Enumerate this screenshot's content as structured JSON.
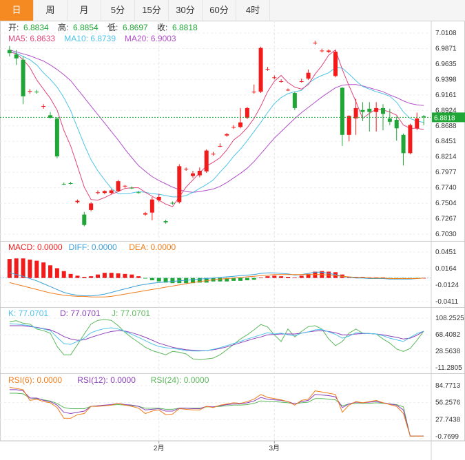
{
  "tabs": [
    "日",
    "周",
    "月",
    "5分",
    "15分",
    "30分",
    "60分",
    "4时"
  ],
  "active_tab": 0,
  "colors": {
    "up": "#f21b1b",
    "down": "#1fa636",
    "ma5": "#e0457b",
    "ma10": "#4fc3e8",
    "ma20": "#b04fc7",
    "price_line": "#1fa636",
    "macd_pos": "#f21b1b",
    "macd_neg": "#1fa636",
    "diff": "#3aa0d8",
    "dea": "#f07d1b",
    "k": "#4fc3e8",
    "d": "#8a3fb8",
    "j": "#5cb85c",
    "rsi6": "#f07d1b",
    "rsi12": "#8a3fb8",
    "rsi24": "#5cb85c"
  },
  "chart_data": [
    {
      "type": "candlestick",
      "ohlc_header": [
        {
          "label": "开:",
          "value": "6.8834"
        },
        {
          "label": "高:",
          "value": "6.8854"
        },
        {
          "label": "低:",
          "value": "6.8697"
        },
        {
          "label": "收:",
          "value": "6.8818"
        }
      ],
      "ma_labels": [
        {
          "label": "MA5: 6.8633",
          "key": "ma5"
        },
        {
          "label": "MA10: 6.8739",
          "key": "ma10"
        },
        {
          "label": "MA20: 6.9003",
          "key": "ma20"
        }
      ],
      "yticks": [
        "7.0108",
        "6.9871",
        "6.9635",
        "6.9398",
        "6.9161",
        "6.8924",
        "6.8688",
        "6.8451",
        "6.8214",
        "6.7977",
        "6.7740",
        "6.7504",
        "6.7267",
        "6.7030"
      ],
      "ylim": [
        6.703,
        7.0108
      ],
      "last_price": "6.8818",
      "x_labels": [
        {
          "label": "2月",
          "index": 22
        },
        {
          "label": "3月",
          "index": 39
        }
      ],
      "candles": [
        [
          6.985,
          6.991,
          6.975,
          6.98
        ],
        [
          6.978,
          6.985,
          6.962,
          6.972
        ],
        [
          6.97,
          6.975,
          6.902,
          6.914
        ],
        [
          6.922,
          6.925,
          6.918,
          6.922
        ],
        [
          6.921,
          6.924,
          6.918,
          6.92
        ],
        [
          6.898,
          6.902,
          6.895,
          6.899
        ],
        [
          6.885,
          6.89,
          6.88,
          6.881
        ],
        [
          6.88,
          6.882,
          6.819,
          6.822
        ],
        [
          6.78,
          6.782,
          6.778,
          6.779
        ],
        [
          6.781,
          6.783,
          6.779,
          6.78
        ],
        [
          6.752,
          6.756,
          6.75,
          6.754
        ],
        [
          6.733,
          6.737,
          6.715,
          6.717
        ],
        [
          6.74,
          6.752,
          6.738,
          6.75
        ],
        [
          6.766,
          6.77,
          6.764,
          6.767
        ],
        [
          6.766,
          6.77,
          6.764,
          6.769
        ],
        [
          6.766,
          6.772,
          6.764,
          6.77
        ],
        [
          6.769,
          6.786,
          6.768,
          6.784
        ],
        [
          6.776,
          6.778,
          6.774,
          6.777
        ],
        [
          6.774,
          6.776,
          6.772,
          6.773
        ],
        [
          6.767,
          6.769,
          6.765,
          6.766
        ],
        [
          6.733,
          6.737,
          6.731,
          6.735
        ],
        [
          6.736,
          6.76,
          6.724,
          6.756
        ],
        [
          6.755,
          6.765,
          6.752,
          6.76
        ],
        [
          6.723,
          6.725,
          6.719,
          6.721
        ],
        [
          6.751,
          6.753,
          6.748,
          6.75
        ],
        [
          6.752,
          6.81,
          6.75,
          6.807
        ],
        [
          6.802,
          6.805,
          6.8,
          6.803
        ],
        [
          6.792,
          6.8,
          6.789,
          6.796
        ],
        [
          6.793,
          6.805,
          6.79,
          6.8
        ],
        [
          6.799,
          6.833,
          6.797,
          6.831
        ],
        [
          6.825,
          6.829,
          6.823,
          6.826
        ],
        [
          6.838,
          6.842,
          6.836,
          6.838
        ],
        [
          6.854,
          6.858,
          6.852,
          6.856
        ],
        [
          6.866,
          6.87,
          6.864,
          6.867
        ],
        [
          6.867,
          6.896,
          6.865,
          6.874
        ],
        [
          6.881,
          6.898,
          6.879,
          6.896
        ],
        [
          6.92,
          6.932,
          6.918,
          6.921
        ],
        [
          6.921,
          6.99,
          6.919,
          6.988
        ],
        [
          6.955,
          6.959,
          6.953,
          6.956
        ],
        [
          6.942,
          6.946,
          6.94,
          6.943
        ],
        [
          6.937,
          6.94,
          6.935,
          6.937
        ],
        [
          6.924,
          6.926,
          6.922,
          6.924
        ],
        [
          6.919,
          6.921,
          6.893,
          6.896
        ],
        [
          6.937,
          6.941,
          6.935,
          6.937
        ],
        [
          6.941,
          6.955,
          6.939,
          6.95
        ],
        [
          6.995,
          6.999,
          6.993,
          6.996
        ],
        [
          6.983,
          6.987,
          6.981,
          6.984
        ],
        [
          6.982,
          6.986,
          6.98,
          6.984
        ],
        [
          6.945,
          6.985,
          6.943,
          6.982
        ],
        [
          6.927,
          6.928,
          6.838,
          6.855
        ],
        [
          6.855,
          6.885,
          6.845,
          6.884
        ],
        [
          6.88,
          6.91,
          6.855,
          6.896
        ],
        [
          6.893,
          6.905,
          6.876,
          6.89
        ],
        [
          6.895,
          6.905,
          6.86,
          6.89
        ],
        [
          6.89,
          6.905,
          6.86,
          6.896
        ],
        [
          6.896,
          6.902,
          6.862,
          6.887
        ],
        [
          6.88,
          6.895,
          6.87,
          6.875
        ],
        [
          6.878,
          6.883,
          6.846,
          6.865
        ],
        [
          6.855,
          6.857,
          6.808,
          6.827
        ],
        [
          6.827,
          6.872,
          6.825,
          6.87
        ],
        [
          6.865,
          6.889,
          6.862,
          6.88
        ],
        [
          6.8834,
          6.8854,
          6.8697,
          6.8818
        ]
      ],
      "ma5": [
        6.982,
        6.979,
        6.97,
        6.958,
        6.939,
        6.925,
        6.911,
        6.893,
        6.862,
        6.838,
        6.807,
        6.775,
        6.756,
        6.755,
        6.759,
        6.764,
        6.768,
        6.773,
        6.774,
        6.774,
        6.767,
        6.761,
        6.755,
        6.749,
        6.745,
        6.76,
        6.775,
        6.786,
        6.797,
        6.807,
        6.813,
        6.82,
        6.832,
        6.847,
        6.855,
        6.866,
        6.88,
        6.899,
        6.921,
        6.937,
        6.946,
        6.935,
        6.928,
        6.925,
        6.932,
        6.948,
        6.961,
        6.977,
        6.985,
        6.955,
        6.93,
        6.906,
        6.88,
        6.888,
        6.894,
        6.893,
        6.89,
        6.885,
        6.87,
        6.865,
        6.865,
        6.863
      ],
      "ma10": [
        6.982,
        6.98,
        6.975,
        6.97,
        6.962,
        6.95,
        6.94,
        6.928,
        6.912,
        6.892,
        6.866,
        6.84,
        6.817,
        6.8,
        6.786,
        6.773,
        6.765,
        6.765,
        6.766,
        6.768,
        6.767,
        6.765,
        6.764,
        6.762,
        6.76,
        6.76,
        6.762,
        6.767,
        6.773,
        6.779,
        6.786,
        6.798,
        6.809,
        6.822,
        6.833,
        6.846,
        6.86,
        6.874,
        6.889,
        6.903,
        6.912,
        6.918,
        6.921,
        6.923,
        6.934,
        6.941,
        6.946,
        6.95,
        6.958,
        6.957,
        6.948,
        6.938,
        6.929,
        6.925,
        6.921,
        6.918,
        6.914,
        6.905,
        6.89,
        6.88,
        6.876,
        6.874
      ],
      "ma20": [
        6.985,
        6.982,
        6.979,
        6.976,
        6.972,
        6.968,
        6.962,
        6.955,
        6.947,
        6.938,
        6.925,
        6.912,
        6.899,
        6.886,
        6.873,
        6.86,
        6.847,
        6.833,
        6.82,
        6.808,
        6.799,
        6.791,
        6.785,
        6.78,
        6.775,
        6.771,
        6.768,
        6.767,
        6.768,
        6.77,
        6.772,
        6.776,
        6.782,
        6.789,
        6.796,
        6.804,
        6.814,
        6.826,
        6.838,
        6.85,
        6.86,
        6.87,
        6.88,
        6.889,
        6.897,
        6.905,
        6.913,
        6.92,
        6.927,
        6.931,
        6.932,
        6.932,
        6.93,
        6.927,
        6.924,
        6.921,
        6.916,
        6.912,
        6.907,
        6.903,
        6.901,
        6.9
      ]
    },
    {
      "type": "bar",
      "title_items": [
        {
          "label": "MACD: 0.0000",
          "key": "macd_pos"
        },
        {
          "label": "DIFF: 0.0000",
          "key": "diff"
        },
        {
          "label": "DEA: 0.0000",
          "key": "dea"
        }
      ],
      "yticks": [
        "0.0451",
        "0.0164",
        "-0.0124",
        "-0.0411"
      ],
      "ylim": [
        -0.0411,
        0.0451
      ],
      "macd": [
        0.033,
        0.034,
        0.034,
        0.032,
        0.03,
        0.027,
        0.022,
        0.017,
        0.012,
        0.007,
        0.004,
        0.002,
        0.003,
        0.006,
        0.009,
        0.009,
        0.008,
        0.007,
        0.006,
        0.003,
        -0.001,
        -0.004,
        -0.006,
        -0.008,
        -0.009,
        -0.009,
        -0.009,
        -0.009,
        -0.008,
        -0.008,
        -0.006,
        -0.006,
        -0.006,
        -0.005,
        -0.005,
        -0.004,
        -0.003,
        0.001,
        0.003,
        0.004,
        0.003,
        0.002,
        0.001,
        0.004,
        0.007,
        0.011,
        0.012,
        0.011,
        0.01,
        0.006,
        0.002,
        0.002,
        0.002,
        0.001,
        0.001,
        0.001,
        -0.001,
        -0.001,
        -0.001,
        -0.002,
        -0.001,
        0.0
      ],
      "diff": [
        0.009,
        0.006,
        0.003,
        -0.001,
        -0.005,
        -0.01,
        -0.015,
        -0.02,
        -0.025,
        -0.028,
        -0.03,
        -0.031,
        -0.031,
        -0.03,
        -0.028,
        -0.025,
        -0.022,
        -0.019,
        -0.016,
        -0.013,
        -0.011,
        -0.009,
        -0.008,
        -0.007,
        -0.006,
        -0.005,
        -0.004,
        -0.003,
        -0.002,
        -0.001,
        0.0,
        0.001,
        0.002,
        0.003,
        0.004,
        0.005,
        0.006,
        0.008,
        0.009,
        0.009,
        0.008,
        0.007,
        0.005,
        0.006,
        0.008,
        0.01,
        0.01,
        0.008,
        0.006,
        0.003,
        0.001,
        0.0,
        0.0,
        -0.001,
        -0.001,
        -0.001,
        -0.002,
        -0.002,
        -0.002,
        -0.002,
        -0.001,
        0.0
      ],
      "dea": [
        -0.008,
        -0.011,
        -0.014,
        -0.017,
        -0.02,
        -0.023,
        -0.026,
        -0.028,
        -0.03,
        -0.031,
        -0.032,
        -0.032,
        -0.033,
        -0.033,
        -0.033,
        -0.032,
        -0.03,
        -0.028,
        -0.026,
        -0.024,
        -0.022,
        -0.02,
        -0.018,
        -0.016,
        -0.014,
        -0.012,
        -0.01,
        -0.008,
        -0.006,
        -0.005,
        -0.003,
        -0.002,
        -0.001,
        0.0,
        0.001,
        0.002,
        0.003,
        0.004,
        0.005,
        0.006,
        0.006,
        0.006,
        0.006,
        0.006,
        0.006,
        0.006,
        0.006,
        0.005,
        0.004,
        0.003,
        0.002,
        0.001,
        0.001,
        0.0,
        0.0,
        0.0,
        -0.001,
        -0.001,
        -0.001,
        -0.001,
        -0.001,
        0.0
      ]
    },
    {
      "type": "line",
      "title_items": [
        {
          "label": "K: 77.0701",
          "key": "k"
        },
        {
          "label": "D: 77.0701",
          "key": "d"
        },
        {
          "label": "J: 77.0701",
          "key": "j"
        }
      ],
      "yticks": [
        "108.2525",
        "68.4082",
        "28.5638",
        "-11.2805"
      ],
      "ylim": [
        -11.2805,
        108.2525
      ],
      "k": [
        95,
        94,
        92,
        90,
        85,
        82,
        78,
        62,
        47,
        45,
        52,
        60,
        73,
        79,
        83,
        85,
        82,
        76,
        69,
        62,
        54,
        46,
        40,
        37,
        35,
        33,
        30,
        29,
        29,
        30,
        33,
        37,
        42,
        47,
        52,
        58,
        63,
        68,
        73,
        70,
        72,
        68,
        66,
        72,
        75,
        80,
        81,
        75,
        69,
        60,
        65,
        73,
        72,
        71,
        70,
        66,
        60,
        56,
        52,
        62,
        71,
        77.07
      ],
      "d": [
        90,
        90,
        90,
        88,
        86,
        83,
        80,
        73,
        64,
        58,
        55,
        56,
        62,
        67,
        72,
        76,
        78,
        77,
        73,
        68,
        62,
        55,
        48,
        43,
        38,
        35,
        32,
        31,
        30,
        30,
        32,
        35,
        39,
        44,
        49,
        54,
        59,
        63,
        68,
        69,
        70,
        70,
        70,
        72,
        75,
        77,
        78,
        76,
        73,
        68,
        68,
        70,
        71,
        71,
        70,
        68,
        65,
        62,
        58,
        60,
        67,
        77.07
      ],
      "j": [
        100,
        102,
        96,
        94,
        82,
        78,
        72,
        40,
        20,
        20,
        44,
        70,
        94,
        103,
        105,
        103,
        90,
        74,
        61,
        50,
        38,
        30,
        25,
        20,
        28,
        26,
        22,
        10,
        8,
        10,
        12,
        20,
        32,
        45,
        58,
        68,
        80,
        93,
        87,
        68,
        52,
        82,
        63,
        76,
        88,
        90,
        82,
        58,
        42,
        52,
        72,
        82,
        72,
        71,
        70,
        58,
        48,
        34,
        28,
        35,
        55,
        77.07
      ]
    },
    {
      "type": "line",
      "title_items": [
        {
          "label": "RSI(6): 0.0000",
          "key": "rsi6"
        },
        {
          "label": "RSI(12): 0.0000",
          "key": "rsi12"
        },
        {
          "label": "RSI(24): 0.0000",
          "key": "rsi24"
        }
      ],
      "yticks": [
        "84.7713",
        "56.2576",
        "27.7438",
        "-0.7699"
      ],
      "ylim": [
        -0.7699,
        84.7713
      ],
      "rsi6": [
        82,
        80,
        78,
        60,
        62,
        58,
        56,
        48,
        30,
        30,
        36,
        38,
        50,
        50,
        51,
        52,
        55,
        52,
        50,
        47,
        38,
        42,
        44,
        36,
        37,
        46,
        45,
        44,
        44,
        50,
        48,
        52,
        54,
        56,
        55,
        58,
        62,
        70,
        65,
        63,
        61,
        58,
        52,
        60,
        62,
        76,
        74,
        72,
        70,
        40,
        52,
        58,
        56,
        58,
        60,
        56,
        53,
        50,
        38,
        0,
        0,
        0
      ],
      "rsi12": [
        78,
        78,
        76,
        64,
        64,
        60,
        58,
        52,
        40,
        38,
        40,
        42,
        50,
        51,
        52,
        53,
        55,
        53,
        52,
        50,
        44,
        45,
        46,
        42,
        42,
        47,
        47,
        46,
        46,
        50,
        49,
        51,
        53,
        54,
        54,
        56,
        59,
        65,
        62,
        61,
        60,
        58,
        54,
        58,
        60,
        70,
        69,
        68,
        66,
        48,
        54,
        57,
        56,
        57,
        58,
        56,
        54,
        52,
        44,
        0,
        0,
        0
      ],
      "rsi24": [
        72,
        72,
        71,
        64,
        63,
        61,
        59,
        55,
        48,
        46,
        46,
        46,
        50,
        51,
        51,
        52,
        53,
        52,
        51,
        50,
        47,
        47,
        47,
        45,
        45,
        47,
        47,
        47,
        47,
        49,
        49,
        50,
        51,
        52,
        52,
        53,
        55,
        59,
        58,
        58,
        57,
        56,
        54,
        56,
        57,
        63,
        63,
        62,
        61,
        51,
        54,
        55,
        55,
        55,
        56,
        55,
        54,
        53,
        49,
        0,
        0,
        0
      ]
    }
  ]
}
